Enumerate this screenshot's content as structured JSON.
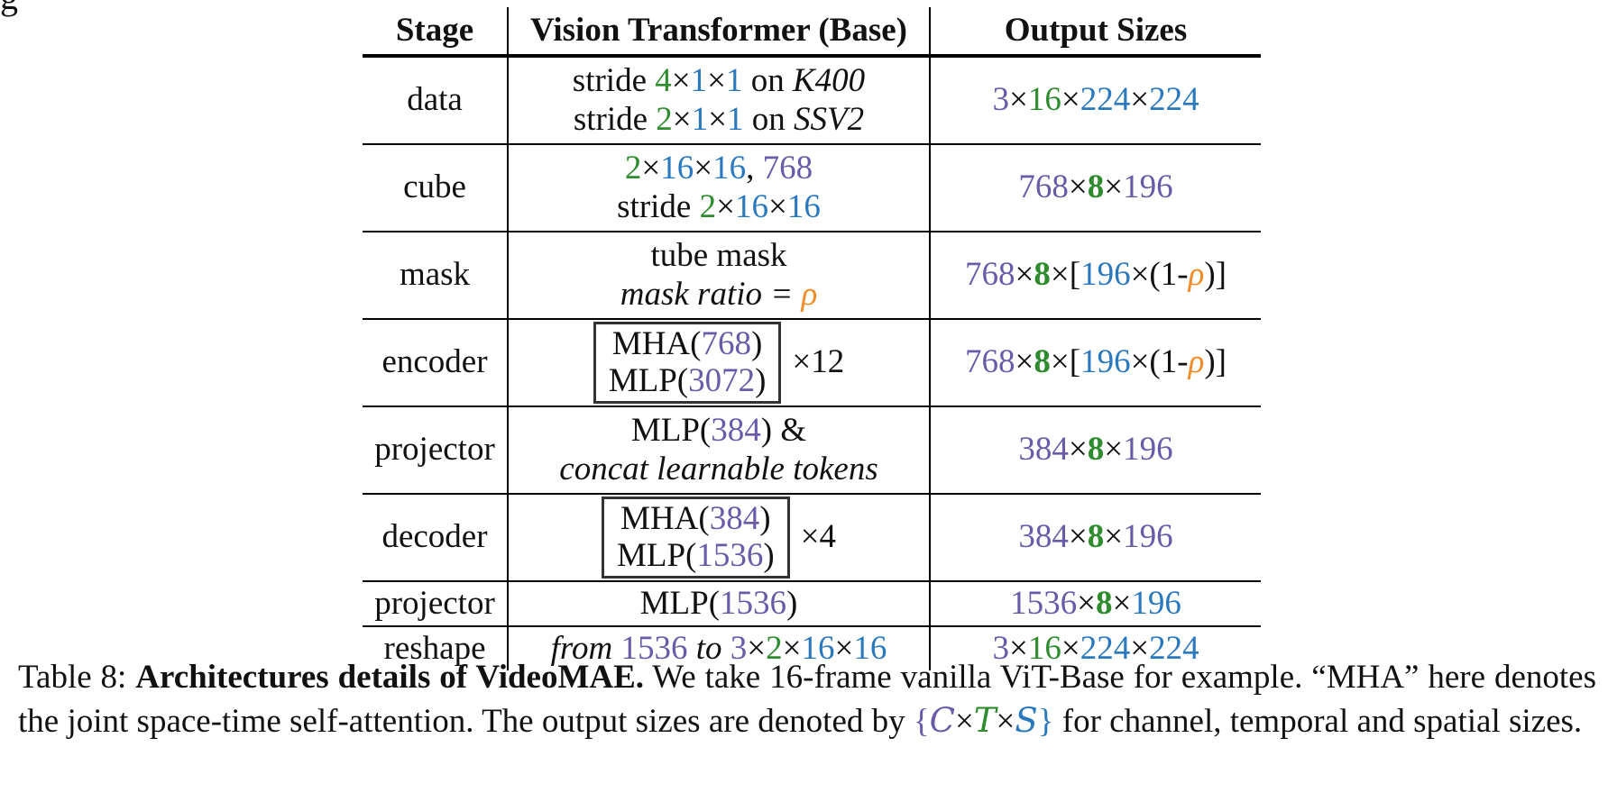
{
  "table": {
    "headers": [
      "Stage",
      "Vision Transformer (Base)",
      "Output Sizes"
    ],
    "rows": {
      "data": {
        "stage": "data",
        "l1": {
          "pre": "stride ",
          "a": "4",
          "x1": "×",
          "b": "1",
          "x2": "×",
          "c": "1",
          "post": " on ",
          "ds": "K400"
        },
        "l2": {
          "pre": "stride ",
          "a": "2",
          "x1": "×",
          "b": "1",
          "x2": "×",
          "c": "1",
          "post": " on ",
          "ds": "SSV2"
        },
        "out": {
          "c": "3",
          "x1": "×",
          "t": "16",
          "x2": "×",
          "s1": "224",
          "x3": "×",
          "s2": "224"
        }
      },
      "cube": {
        "stage": "cube",
        "l1": {
          "a": "2",
          "x1": "×",
          "b": "16",
          "x2": "×",
          "c": "16",
          "sep": ", ",
          "d": "768"
        },
        "l2": {
          "pre": "stride ",
          "a": "2",
          "x1": "×",
          "b": "16",
          "x2": "×",
          "c": "16"
        },
        "out": {
          "c": "768",
          "x1": "×",
          "t": "8",
          "x2": "×",
          "s": "196"
        }
      },
      "mask": {
        "stage": "mask",
        "l1": "tube mask",
        "l2": {
          "txt": "mask ratio = ",
          "rho": "ρ"
        },
        "out": {
          "c": "768",
          "x1": "×",
          "t": "8",
          "x2": "×[",
          "s": "196",
          "x3": "×(1-",
          "rho": "ρ",
          "end": ")]"
        }
      },
      "encoder": {
        "stage": "encoder",
        "mha": {
          "pre": "MHA(",
          "val": "768",
          "post": ")"
        },
        "mlp": {
          "pre": "MLP(",
          "val": "3072",
          "post": ")"
        },
        "repeat": "×12",
        "out": {
          "c": "768",
          "x1": "×",
          "t": "8",
          "x2": "×[",
          "s": "196",
          "x3": "×(1-",
          "rho": "ρ",
          "end": ")]"
        }
      },
      "projector1": {
        "stage": "projector",
        "l1": {
          "pre": "MLP(",
          "val": "384",
          "post": ") &"
        },
        "l2": "concat learnable tokens",
        "out": {
          "c": "384",
          "x1": "×",
          "t": "8",
          "x2": "×",
          "s": "196"
        }
      },
      "decoder": {
        "stage": "decoder",
        "mha": {
          "pre": "MHA(",
          "val": "384",
          "post": ")"
        },
        "mlp": {
          "pre": "MLP(",
          "val": "1536",
          "post": ")"
        },
        "repeat": "×4",
        "out": {
          "c": "384",
          "x1": "×",
          "t": "8",
          "x2": "×",
          "s": "196"
        }
      },
      "projector2": {
        "stage": "projector",
        "l1": {
          "pre": "MLP(",
          "val": "1536",
          "post": ")"
        },
        "out": {
          "c": "1536",
          "x1": "×",
          "t": "8",
          "x2": "×",
          "s": "196"
        }
      },
      "reshape": {
        "stage": "reshape",
        "l1": {
          "from": "from ",
          "val": "1536",
          "to": " to ",
          "a": "3",
          "x1": "×",
          "b": "2",
          "x2": "×",
          "c": "16",
          "x3": "×",
          "d": "16"
        },
        "out": {
          "c": "3",
          "x1": "×",
          "t": "16",
          "x2": "×",
          "s1": "224",
          "x3": "×",
          "s2": "224"
        }
      }
    }
  },
  "caption": {
    "label": "Table 8: ",
    "bold": "Architectures details of VideoMAE.",
    "t1": " We take 16-frame vanilla ViT-Base for example. “MHA” here denotes the joint space-time self-attention. The output sizes are denoted by ",
    "lbrace": "{",
    "C": "C",
    "x1": "×",
    "T": "T",
    "x2": "×",
    "S": "S",
    "rbrace": "}",
    "t2": " for channel, temporal and spatial sizes."
  },
  "colors": {
    "temporal": "#2e8b2e",
    "spatial": "#2a78bd",
    "channel": "#6a5aa8",
    "ratio": "#f28c28"
  }
}
